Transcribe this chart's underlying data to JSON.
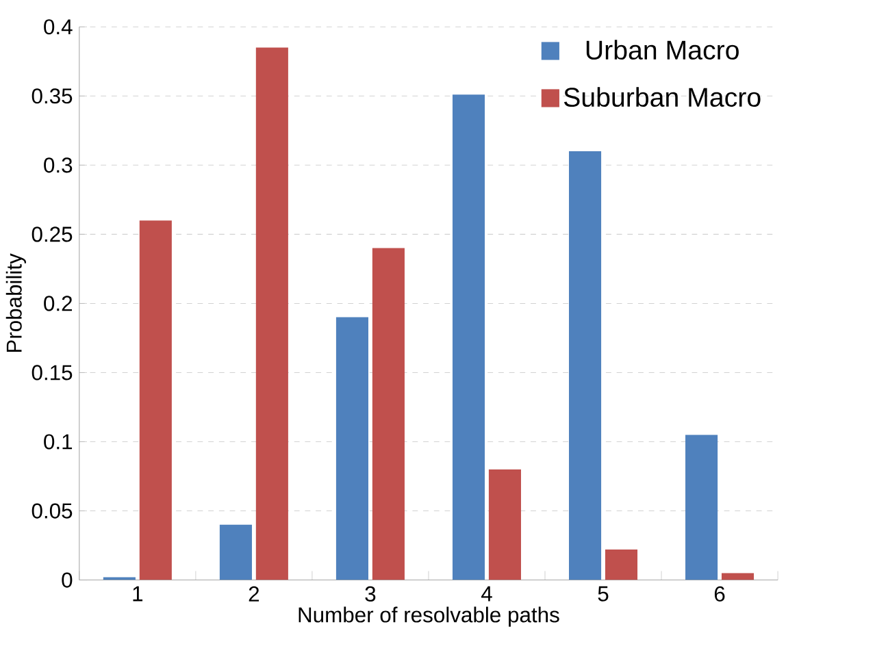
{
  "chart_data": {
    "type": "bar",
    "xlabel": "Number of resolvable paths",
    "ylabel": "Probability",
    "categories": [
      "1",
      "2",
      "3",
      "4",
      "5",
      "6"
    ],
    "series": [
      {
        "name": "Urban Macro",
        "color": "#4f81bd",
        "values": [
          0.002,
          0.04,
          0.19,
          0.351,
          0.31,
          0.105
        ]
      },
      {
        "name": "Suburban Macro",
        "color": "#c0504d",
        "values": [
          0.26,
          0.385,
          0.24,
          0.08,
          0.022,
          0.005
        ]
      }
    ],
    "ylim": [
      0,
      0.4
    ],
    "yticks": [
      0,
      0.05,
      0.1,
      0.15,
      0.2,
      0.25,
      0.3,
      0.35,
      0.4
    ],
    "grid": "y",
    "legend": "top right"
  }
}
